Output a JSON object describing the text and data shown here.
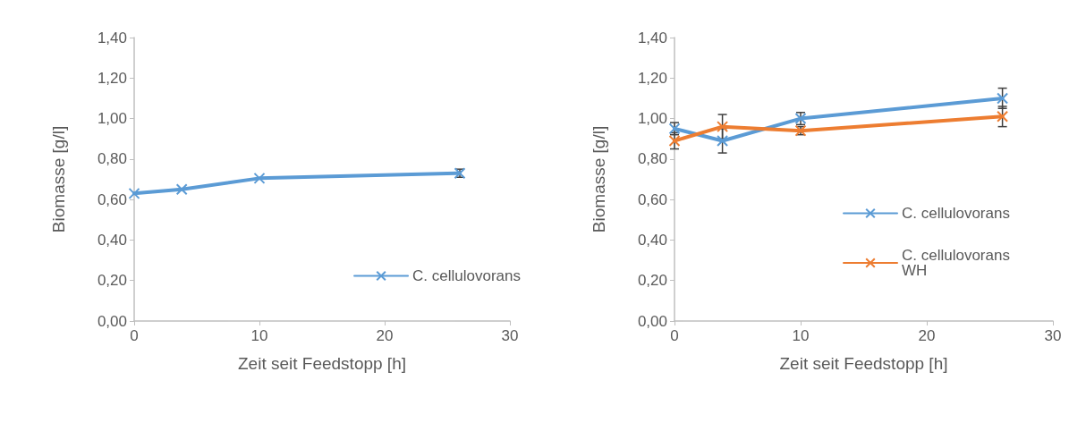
{
  "chart_data": [
    {
      "type": "line",
      "xlabel": "Zeit seit Feedstopp [h]",
      "ylabel": "Biomasse [g/l]",
      "x": [
        0,
        3.8,
        10,
        26
      ],
      "series": [
        {
          "name": "C. cellulovorans",
          "color": "#5b9bd5",
          "values": [
            0.63,
            0.65,
            0.705,
            0.73
          ],
          "errors": [
            null,
            null,
            null,
            0.02
          ]
        }
      ],
      "xlim": [
        0,
        30
      ],
      "xticks": [
        0,
        10,
        20,
        30
      ],
      "ylim": [
        0,
        1.4
      ],
      "yticks": [
        {
          "value": 0,
          "label": "0,00"
        },
        {
          "value": 0.2,
          "label": "0,20"
        },
        {
          "value": 0.4,
          "label": "0,40"
        },
        {
          "value": 0.6,
          "label": "0,60"
        },
        {
          "value": 0.8,
          "label": "0,80"
        },
        {
          "value": 1.0,
          "label": "1,00"
        },
        {
          "value": 1.2,
          "label": "1,20"
        },
        {
          "value": 1.4,
          "label": "1,40"
        }
      ],
      "grid": false,
      "legend": "bottom right",
      "marker": "cross",
      "line_style": "solid"
    },
    {
      "type": "line",
      "xlabel": "Zeit seit Feedstopp [h]",
      "ylabel": "Biomasse [g/l]",
      "x": [
        0,
        3.8,
        10,
        26
      ],
      "series": [
        {
          "name": "C. cellulovorans",
          "color": "#5b9bd5",
          "values": [
            0.95,
            0.89,
            1.0,
            1.1
          ],
          "errors": [
            0.03,
            0.06,
            0.03,
            0.05
          ]
        },
        {
          "name": "C. cellulovorans WH",
          "color": "#ed7d31",
          "values": [
            0.89,
            0.96,
            0.94,
            1.01
          ],
          "errors": [
            0.04,
            0.06,
            0.02,
            0.05
          ]
        }
      ],
      "xlim": [
        0,
        30
      ],
      "xticks": [
        0,
        10,
        20,
        30
      ],
      "ylim": [
        0,
        1.4
      ],
      "yticks": [
        {
          "value": 0,
          "label": "0,00"
        },
        {
          "value": 0.2,
          "label": "0,20"
        },
        {
          "value": 0.4,
          "label": "0,40"
        },
        {
          "value": 0.6,
          "label": "0,60"
        },
        {
          "value": 0.8,
          "label": "0,80"
        },
        {
          "value": 1.0,
          "label": "1,00"
        },
        {
          "value": 1.2,
          "label": "1,20"
        },
        {
          "value": 1.4,
          "label": "1,40"
        }
      ],
      "grid": false,
      "legend": "right",
      "marker": "cross",
      "line_style": "solid"
    }
  ]
}
